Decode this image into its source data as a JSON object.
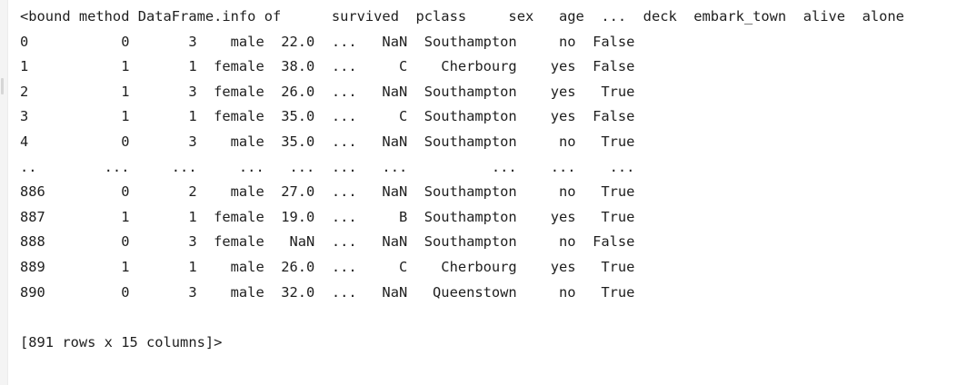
{
  "console": {
    "header": "<bound method DataFrame.info of      survived  pclass     sex   age  ...  deck  embark_town  alive  alone",
    "rows": [
      "0           0       3    male  22.0  ...   NaN  Southampton     no  False",
      "1           1       1  female  38.0  ...     C    Cherbourg    yes  False",
      "2           1       3  female  26.0  ...   NaN  Southampton    yes   True",
      "3           1       1  female  35.0  ...     C  Southampton    yes  False",
      "4           0       3    male  35.0  ...   NaN  Southampton     no   True",
      "..        ...     ...     ...   ...  ...   ...          ...    ...    ...",
      "886         0       2    male  27.0  ...   NaN  Southampton     no   True",
      "887         1       1  female  19.0  ...     B  Southampton    yes   True",
      "888         0       3  female   NaN  ...   NaN  Southampton     no  False",
      "889         1       1    male  26.0  ...     C    Cherbourg    yes   True",
      "890         0       3    male  32.0  ...   NaN   Queenstown     no   True"
    ],
    "footer": "[891 rows x 15 columns]>"
  }
}
